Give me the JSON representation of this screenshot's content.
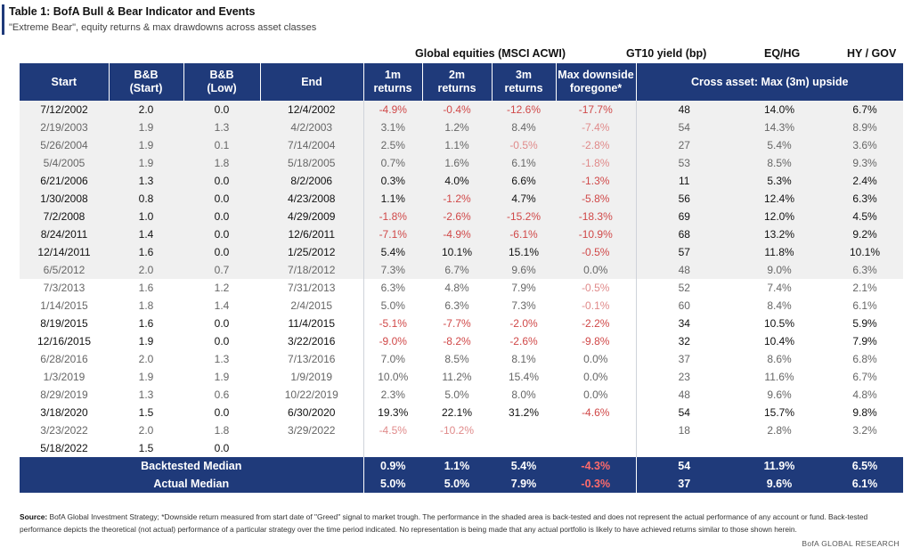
{
  "title": "Table 1: BofA Bull & Bear Indicator and Events",
  "subtitle": "\"Extreme Bear\", equity returns & max drawdowns across asset classes",
  "groups": {
    "global_equities": "Global equities (MSCI ACWI)",
    "gt10": "GT10 yield (bp)",
    "eqhg": "EQ/HG",
    "hygov": "HY / GOV"
  },
  "headers": {
    "start": "Start",
    "bb_start": [
      "B&B",
      "(Start)"
    ],
    "bb_low": [
      "B&B",
      "(Low)"
    ],
    "end": "End",
    "r1m": [
      "1m",
      "returns"
    ],
    "r2m": [
      "2m",
      "returns"
    ],
    "r3m": [
      "3m",
      "returns"
    ],
    "maxdown": [
      "Max downside",
      "foregone*"
    ],
    "cross": "Cross asset: Max (3m) upside"
  },
  "rows": [
    {
      "style": "bold",
      "shade": true,
      "c": [
        "7/12/2002",
        "2.0",
        "0.0",
        "12/4/2002",
        "-4.9%",
        "-0.4%",
        "-12.6%",
        "-17.7%",
        "48",
        "14.0%",
        "6.7%"
      ]
    },
    {
      "style": "dim",
      "shade": true,
      "c": [
        "2/19/2003",
        "1.9",
        "1.3",
        "4/2/2003",
        "3.1%",
        "1.2%",
        "8.4%",
        "-7.4%",
        "54",
        "14.3%",
        "8.9%"
      ]
    },
    {
      "style": "dim",
      "shade": true,
      "c": [
        "5/26/2004",
        "1.9",
        "0.1",
        "7/14/2004",
        "2.5%",
        "1.1%",
        "-0.5%",
        "-2.8%",
        "27",
        "5.4%",
        "3.6%"
      ]
    },
    {
      "style": "dim",
      "shade": true,
      "c": [
        "5/4/2005",
        "1.9",
        "1.8",
        "5/18/2005",
        "0.7%",
        "1.6%",
        "6.1%",
        "-1.8%",
        "53",
        "8.5%",
        "9.3%"
      ]
    },
    {
      "style": "bold",
      "shade": true,
      "c": [
        "6/21/2006",
        "1.3",
        "0.0",
        "8/2/2006",
        "0.3%",
        "4.0%",
        "6.6%",
        "-1.3%",
        "11",
        "5.3%",
        "2.4%"
      ]
    },
    {
      "style": "bold",
      "shade": true,
      "c": [
        "1/30/2008",
        "0.8",
        "0.0",
        "4/23/2008",
        "1.1%",
        "-1.2%",
        "4.7%",
        "-5.8%",
        "56",
        "12.4%",
        "6.3%"
      ]
    },
    {
      "style": "bold",
      "shade": true,
      "c": [
        "7/2/2008",
        "1.0",
        "0.0",
        "4/29/2009",
        "-1.8%",
        "-2.6%",
        "-15.2%",
        "-18.3%",
        "69",
        "12.0%",
        "4.5%"
      ]
    },
    {
      "style": "bold",
      "shade": true,
      "c": [
        "8/24/2011",
        "1.4",
        "0.0",
        "12/6/2011",
        "-7.1%",
        "-4.9%",
        "-6.1%",
        "-10.9%",
        "68",
        "13.2%",
        "9.2%"
      ]
    },
    {
      "style": "bold",
      "shade": true,
      "c": [
        "12/14/2011",
        "1.6",
        "0.0",
        "1/25/2012",
        "5.4%",
        "10.1%",
        "15.1%",
        "-0.5%",
        "57",
        "11.8%",
        "10.1%"
      ]
    },
    {
      "style": "dim",
      "shade": true,
      "c": [
        "6/5/2012",
        "2.0",
        "0.7",
        "7/18/2012",
        "7.3%",
        "6.7%",
        "9.6%",
        "0.0%",
        "48",
        "9.0%",
        "6.3%"
      ]
    },
    {
      "style": "dim",
      "shade": false,
      "c": [
        "7/3/2013",
        "1.6",
        "1.2",
        "7/31/2013",
        "6.3%",
        "4.8%",
        "7.9%",
        "-0.5%",
        "52",
        "7.4%",
        "2.1%"
      ]
    },
    {
      "style": "dim",
      "shade": false,
      "c": [
        "1/14/2015",
        "1.8",
        "1.4",
        "2/4/2015",
        "5.0%",
        "6.3%",
        "7.3%",
        "-0.1%",
        "60",
        "8.4%",
        "6.1%"
      ]
    },
    {
      "style": "bold",
      "shade": false,
      "c": [
        "8/19/2015",
        "1.6",
        "0.0",
        "11/4/2015",
        "-5.1%",
        "-7.7%",
        "-2.0%",
        "-2.2%",
        "34",
        "10.5%",
        "5.9%"
      ]
    },
    {
      "style": "bold",
      "shade": false,
      "c": [
        "12/16/2015",
        "1.9",
        "0.0",
        "3/22/2016",
        "-9.0%",
        "-8.2%",
        "-2.6%",
        "-9.8%",
        "32",
        "10.4%",
        "7.9%"
      ]
    },
    {
      "style": "dim",
      "shade": false,
      "c": [
        "6/28/2016",
        "2.0",
        "1.3",
        "7/13/2016",
        "7.0%",
        "8.5%",
        "8.1%",
        "0.0%",
        "37",
        "8.6%",
        "6.8%"
      ]
    },
    {
      "style": "dim",
      "shade": false,
      "c": [
        "1/3/2019",
        "1.9",
        "1.9",
        "1/9/2019",
        "10.0%",
        "11.2%",
        "15.4%",
        "0.0%",
        "23",
        "11.6%",
        "6.7%"
      ]
    },
    {
      "style": "dim",
      "shade": false,
      "c": [
        "8/29/2019",
        "1.3",
        "0.6",
        "10/22/2019",
        "2.3%",
        "5.0%",
        "8.0%",
        "0.0%",
        "48",
        "9.6%",
        "4.8%"
      ]
    },
    {
      "style": "bold",
      "shade": false,
      "c": [
        "3/18/2020",
        "1.5",
        "0.0",
        "6/30/2020",
        "19.3%",
        "22.1%",
        "31.2%",
        "-4.6%",
        "54",
        "15.7%",
        "9.8%"
      ]
    },
    {
      "style": "dim",
      "shade": false,
      "c": [
        "3/23/2022",
        "2.0",
        "1.8",
        "3/29/2022",
        "-4.5%",
        "-10.2%",
        "",
        "",
        "18",
        "2.8%",
        "3.2%"
      ]
    },
    {
      "style": "bold",
      "shade": false,
      "c": [
        "5/18/2022",
        "1.5",
        "0.0",
        "",
        "",
        "",
        "",
        "",
        "",
        "",
        ""
      ]
    }
  ],
  "medians": [
    {
      "label": "Backtested Median",
      "c": [
        "0.9%",
        "1.1%",
        "5.4%",
        "-4.3%",
        "54",
        "11.9%",
        "6.5%"
      ]
    },
    {
      "label": "Actual Median",
      "c": [
        "5.0%",
        "5.0%",
        "7.9%",
        "-0.3%",
        "37",
        "9.6%",
        "6.1%"
      ]
    }
  ],
  "source_label": "Source:",
  "source_text": " BofA Global Investment Strategy; *Downside return measured from start date of \"Greed\" signal to market trough. The performance in the shaded area is back-tested and does not represent the actual performance of any account or fund. Back-tested performance depicts the theoretical (not actual) performance of a particular strategy over the time period indicated. No representation is being made that any actual portfolio is likely to have achieved returns similar to those shown herein.",
  "brand": "BofA GLOBAL RESEARCH",
  "colors": {
    "header_bg": "#1f3a7a",
    "negative": "#d04848",
    "shade": "#f0f0f0"
  }
}
